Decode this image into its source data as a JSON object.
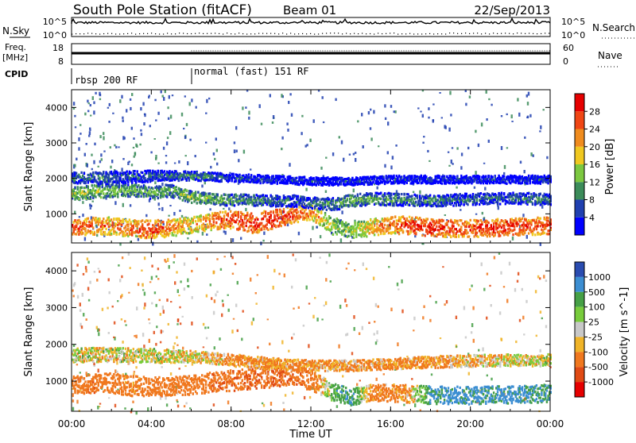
{
  "chart_data": {
    "type": "heatmap",
    "title": "South Pole Station (fitACF)",
    "beam": "Beam 01",
    "date": "22/Sep/2013",
    "xlabel": "Time UT",
    "xlim_hours": [
      0,
      24
    ],
    "x_ticks": [
      "00:00",
      "04:00",
      "08:00",
      "12:00",
      "16:00",
      "20:00",
      "00:00"
    ],
    "noise_panel": {
      "left_label": "N.Sky",
      "right_label": "N.Search",
      "left_ticks": [
        "10^5",
        "10^0"
      ],
      "right_ticks": [
        "10^5",
        "10^0"
      ]
    },
    "freq_panel": {
      "left_label_1": "Freq.",
      "left_label_2": "[MHz]",
      "right_label": "Nave",
      "left_ticks": [
        "18",
        "8"
      ],
      "right_ticks": [
        "60",
        "0"
      ]
    },
    "cpid": {
      "label": "CPID",
      "segments": [
        {
          "start_hour": 0,
          "end_hour": 6,
          "name": "rbsp 200 RF"
        },
        {
          "start_hour": 6,
          "end_hour": 24,
          "name": "normal (fast) 151 RF"
        }
      ]
    },
    "power_panel": {
      "ylabel": "Slant Range [km]",
      "ylim_km": [
        180,
        4500
      ],
      "y_ticks": [
        1000,
        2000,
        3000,
        4000
      ],
      "colorbar_label": "Power [dB]",
      "colorbar_ticks": [
        "4",
        "8",
        "12",
        "16",
        "20",
        "24",
        "28"
      ],
      "colorbar_range": [
        0,
        30
      ],
      "colors": [
        "#0000ff",
        "#2040b0",
        "#3c8c5a",
        "#7cc840",
        "#f0c820",
        "#f08c1e",
        "#f04614",
        "#e60000"
      ],
      "bands": [
        {
          "t": [
            0,
            1,
            2,
            3,
            4,
            5,
            6,
            7,
            8,
            9,
            10,
            11,
            12,
            13,
            14,
            15,
            16,
            17,
            18,
            19,
            20,
            21,
            22,
            23,
            24
          ],
          "center_km": [
            650,
            680,
            700,
            620,
            600,
            640,
            720,
            820,
            880,
            760,
            880,
            1000,
            1080,
            700,
            560,
            650,
            720,
            700,
            640,
            620,
            620,
            640,
            660,
            680,
            700
          ],
          "width_km": [
            260,
            300,
            320,
            300,
            320,
            300,
            280,
            300,
            320,
            360,
            340,
            300,
            280,
            300,
            260,
            300,
            300,
            320,
            300,
            300,
            300,
            300,
            300,
            300,
            300
          ],
          "power_db": [
            26,
            24,
            22,
            24,
            26,
            22,
            20,
            24,
            26,
            27,
            28,
            26,
            22,
            16,
            14,
            20,
            24,
            26,
            28,
            26,
            26,
            27,
            27,
            26,
            26
          ]
        },
        {
          "t": [
            0,
            1,
            2,
            3,
            4,
            5,
            6,
            7,
            8,
            9,
            10,
            11,
            12,
            13,
            14,
            15,
            16,
            17,
            18,
            19,
            20,
            21,
            22,
            23,
            24
          ],
          "center_km": [
            1600,
            1650,
            1700,
            1700,
            1650,
            1680,
            1500,
            1450,
            1420,
            1430,
            1400,
            1400,
            1350,
            1300,
            1400,
            1450,
            1450,
            1420,
            1400,
            1420,
            1450,
            1460,
            1480,
            1450,
            1450
          ],
          "width_km": [
            220,
            240,
            240,
            220,
            240,
            220,
            200,
            200,
            200,
            200,
            200,
            200,
            200,
            220,
            220,
            220,
            220,
            200,
            200,
            200,
            200,
            200,
            200,
            200,
            200
          ],
          "power_db": [
            14,
            14,
            13,
            12,
            12,
            12,
            14,
            13,
            12,
            10,
            9,
            8,
            8,
            10,
            12,
            12,
            10,
            9,
            9,
            8,
            8,
            8,
            8,
            9,
            9
          ]
        },
        {
          "t": [
            0,
            2,
            4,
            6,
            8,
            10,
            12,
            14,
            16,
            18,
            20,
            22,
            24
          ],
          "center_km": [
            2050,
            2050,
            2100,
            2100,
            2050,
            2000,
            1950,
            1950,
            2000,
            2000,
            2000,
            2000,
            2000
          ],
          "width_km": [
            200,
            220,
            200,
            160,
            140,
            140,
            140,
            140,
            140,
            140,
            140,
            140,
            140
          ],
          "power_db": [
            8,
            8,
            7,
            10,
            6,
            5,
            4,
            5,
            5,
            5,
            5,
            5,
            5
          ]
        }
      ]
    },
    "velocity_panel": {
      "ylabel": "Slant Range [km]",
      "ylim_km": [
        180,
        4500
      ],
      "y_ticks": [
        1000,
        2000,
        3000,
        4000
      ],
      "colorbar_label": "Velocity [m s^-1]",
      "colorbar_ticks": [
        "1000",
        "500",
        "100",
        "25",
        "-25",
        "-100",
        "-500",
        "-1000"
      ],
      "colors": [
        "#2a4cb0",
        "#3c8ed2",
        "#46a046",
        "#78cc3c",
        "#c8c8c8",
        "#f0b428",
        "#f0781e",
        "#e04a14",
        "#e60000"
      ],
      "bands": [
        {
          "t": [
            0,
            1,
            2,
            3,
            4,
            5,
            6,
            7,
            8,
            9,
            10,
            11,
            12,
            13,
            14,
            15,
            16,
            17,
            18,
            19,
            20,
            21,
            22,
            23,
            24
          ],
          "center_km": [
            900,
            950,
            980,
            900,
            880,
            900,
            920,
            1000,
            1050,
            1100,
            1150,
            1200,
            1050,
            750,
            600,
            700,
            700,
            680,
            650,
            640,
            640,
            650,
            660,
            680,
            700
          ],
          "width_km": [
            320,
            320,
            340,
            340,
            320,
            320,
            320,
            340,
            360,
            360,
            360,
            340,
            340,
            300,
            280,
            300,
            300,
            300,
            300,
            300,
            300,
            300,
            300,
            300,
            300
          ],
          "velocity": [
            -250,
            -300,
            -250,
            -200,
            -250,
            -250,
            -250,
            -300,
            -350,
            -400,
            -400,
            -350,
            -300,
            150,
            300,
            -150,
            -200,
            -100,
            300,
            400,
            350,
            350,
            400,
            350,
            300
          ]
        },
        {
          "t": [
            0,
            2,
            4,
            6,
            8,
            10,
            12,
            14,
            16,
            18,
            20,
            22,
            24
          ],
          "center_km": [
            1750,
            1750,
            1720,
            1700,
            1600,
            1500,
            1450,
            1450,
            1500,
            1550,
            1580,
            1600,
            1600
          ],
          "width_km": [
            260,
            240,
            240,
            200,
            200,
            200,
            180,
            180,
            180,
            200,
            200,
            200,
            200
          ],
          "velocity": [
            0,
            -10,
            5,
            -15,
            -120,
            -150,
            -130,
            -100,
            -140,
            -120,
            -80,
            -20,
            0
          ]
        }
      ]
    }
  }
}
